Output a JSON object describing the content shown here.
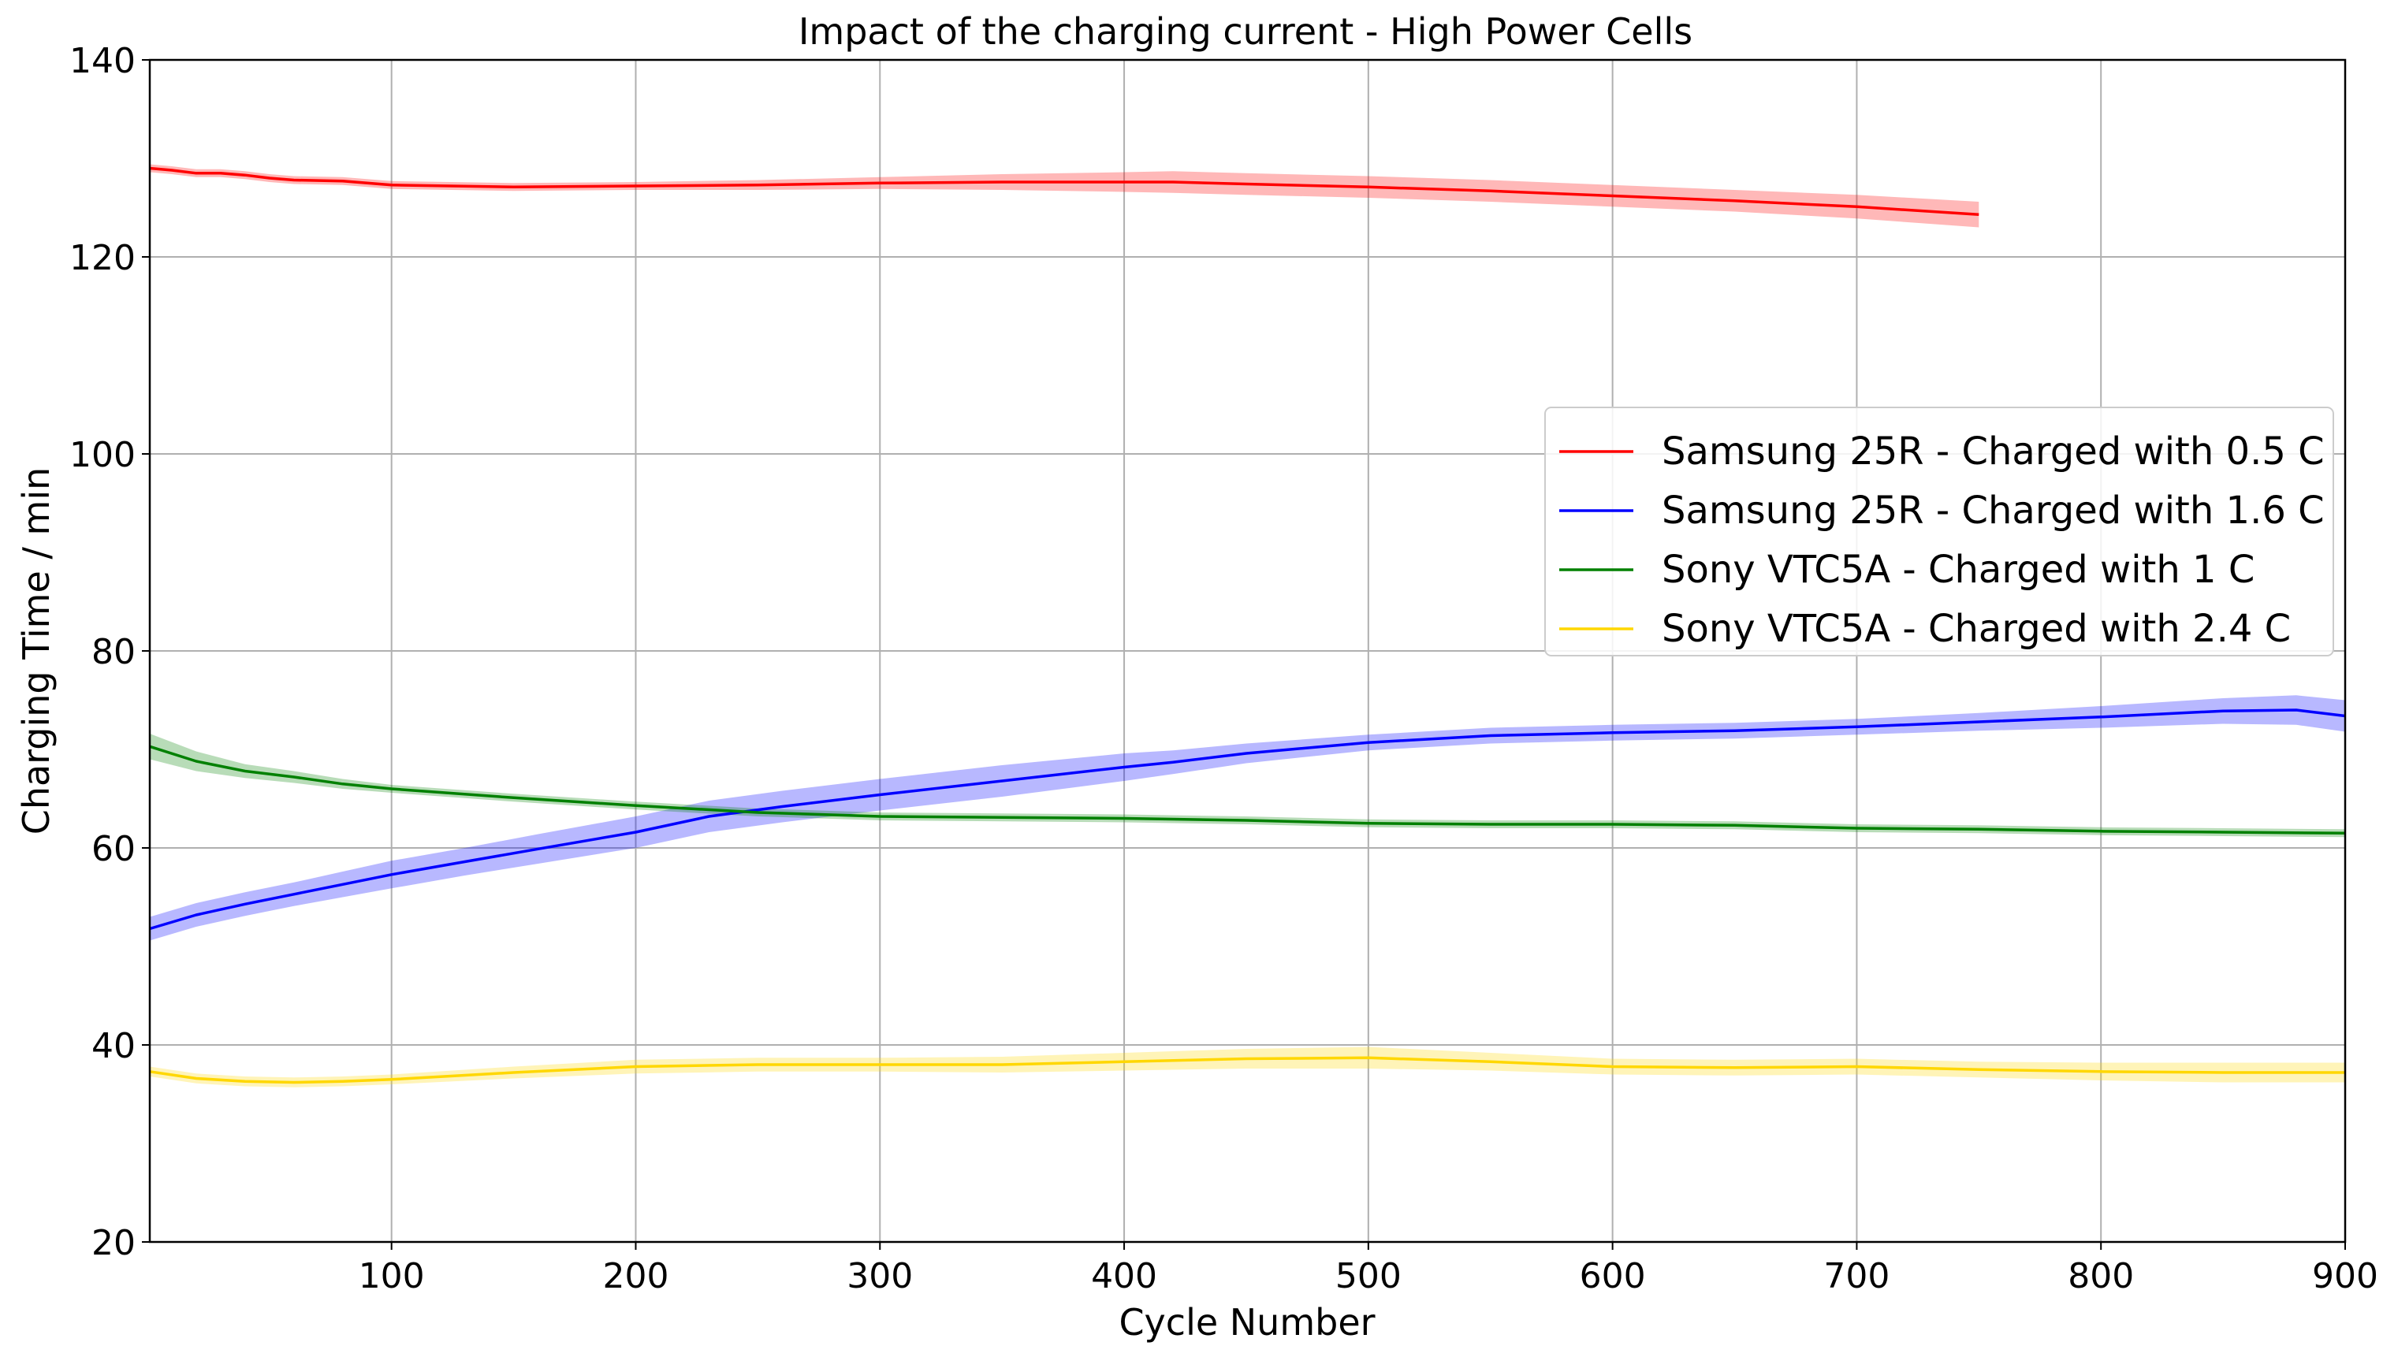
{
  "chart_data": {
    "type": "line",
    "title": "Impact of the charging current - High Power Cells",
    "xlabel": "Cycle Number",
    "ylabel": "Charging Time / min",
    "xlim": [
      1,
      900
    ],
    "ylim": [
      20,
      140
    ],
    "xticks": [
      100,
      200,
      300,
      400,
      500,
      600,
      700,
      800,
      900
    ],
    "yticks": [
      20,
      40,
      60,
      80,
      100,
      120,
      140
    ],
    "grid": true,
    "legend_position": "center-right",
    "series": [
      {
        "name": "Samsung 25R - Charged with 0.5 C",
        "color": "#ff0000",
        "x": [
          1,
          10,
          20,
          30,
          40,
          50,
          60,
          80,
          100,
          150,
          200,
          250,
          300,
          350,
          400,
          420,
          450,
          500,
          550,
          600,
          650,
          700,
          750
        ],
        "y": [
          129,
          128.8,
          128.5,
          128.5,
          128.3,
          128,
          127.8,
          127.7,
          127.3,
          127.1,
          127.2,
          127.3,
          127.5,
          127.6,
          127.6,
          127.6,
          127.4,
          127.1,
          126.7,
          126.2,
          125.7,
          125.1,
          124.3
        ],
        "band": [
          0.4,
          0.4,
          0.4,
          0.4,
          0.4,
          0.4,
          0.4,
          0.4,
          0.4,
          0.4,
          0.4,
          0.5,
          0.6,
          0.8,
          1.0,
          1.1,
          1.1,
          1.1,
          1.1,
          1.1,
          1.1,
          1.2,
          1.3
        ]
      },
      {
        "name": "Samsung 25R - Charged with 1.6 C",
        "color": "#0000ff",
        "x": [
          1,
          20,
          40,
          60,
          80,
          100,
          130,
          160,
          200,
          230,
          260,
          300,
          350,
          400,
          420,
          450,
          500,
          550,
          600,
          650,
          700,
          750,
          800,
          850,
          880,
          900
        ],
        "y": [
          51.8,
          53.2,
          54.3,
          55.3,
          56.3,
          57.3,
          58.6,
          59.9,
          61.6,
          63.2,
          64.2,
          65.4,
          66.8,
          68.2,
          68.7,
          69.6,
          70.7,
          71.4,
          71.7,
          71.9,
          72.3,
          72.8,
          73.3,
          73.9,
          74.0,
          73.4
        ],
        "band": [
          1.2,
          1.2,
          1.2,
          1.2,
          1.3,
          1.4,
          1.4,
          1.5,
          1.6,
          1.6,
          1.6,
          1.6,
          1.6,
          1.4,
          1.2,
          1.0,
          0.8,
          0.8,
          0.8,
          0.8,
          0.8,
          0.9,
          1.1,
          1.3,
          1.5,
          1.6
        ]
      },
      {
        "name": "Sony VTC5A - Charged with 1 C",
        "color": "#008000",
        "x": [
          1,
          20,
          40,
          60,
          80,
          100,
          150,
          200,
          250,
          300,
          350,
          400,
          450,
          500,
          550,
          600,
          650,
          700,
          750,
          800,
          850,
          900
        ],
        "y": [
          70.3,
          68.8,
          67.8,
          67.2,
          66.5,
          66.0,
          65.1,
          64.3,
          63.6,
          63.2,
          63.1,
          63.0,
          62.8,
          62.5,
          62.4,
          62.4,
          62.3,
          62.0,
          61.9,
          61.7,
          61.6,
          61.5
        ],
        "band": [
          1.3,
          1.0,
          0.7,
          0.6,
          0.5,
          0.4,
          0.4,
          0.4,
          0.4,
          0.4,
          0.4,
          0.4,
          0.4,
          0.4,
          0.4,
          0.4,
          0.4,
          0.4,
          0.4,
          0.4,
          0.4,
          0.4
        ]
      },
      {
        "name": "Sony VTC5A - Charged with 2.4 C",
        "color": "#ffd700",
        "x": [
          1,
          20,
          40,
          60,
          80,
          100,
          150,
          200,
          250,
          300,
          350,
          400,
          450,
          500,
          550,
          600,
          650,
          700,
          750,
          800,
          850,
          900
        ],
        "y": [
          37.3,
          36.6,
          36.3,
          36.2,
          36.3,
          36.5,
          37.2,
          37.8,
          38.0,
          38.0,
          38.0,
          38.3,
          38.6,
          38.7,
          38.3,
          37.8,
          37.7,
          37.8,
          37.5,
          37.3,
          37.2,
          37.2
        ],
        "band": [
          0.5,
          0.5,
          0.5,
          0.5,
          0.5,
          0.5,
          0.6,
          0.7,
          0.7,
          0.7,
          0.8,
          0.9,
          1.0,
          1.1,
          0.9,
          0.8,
          0.8,
          0.8,
          0.8,
          0.9,
          1.0,
          1.0
        ]
      }
    ]
  }
}
